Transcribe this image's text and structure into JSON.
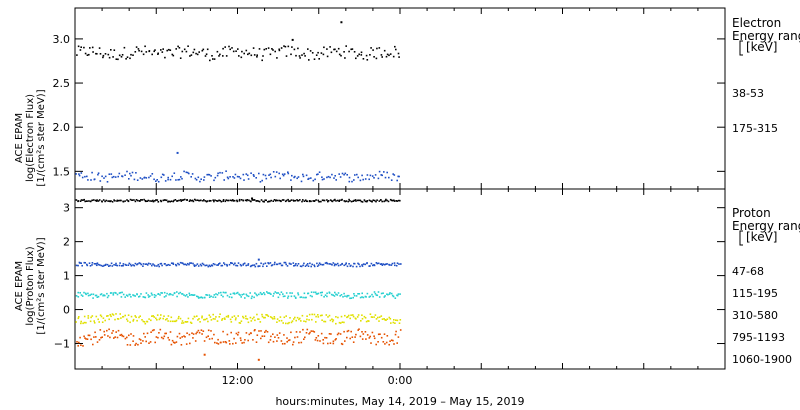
{
  "chart_data": [
    {
      "type": "scatter",
      "panel": "electron",
      "ylabel_lines": [
        "ACE EPAM",
        "log(Electron Flux)",
        "[1/(cm²s ster MeV)]"
      ],
      "ylim": [
        1.3,
        3.35
      ],
      "yticks": [
        "1.5",
        "2.0",
        "2.5",
        "3.0"
      ],
      "ytick_values": [
        1.5,
        2.0,
        2.5,
        3.0
      ],
      "legend_title_lines": [
        "Electron",
        "Energy ranges",
        "[keV]"
      ],
      "x_range_hours": [
        0,
        48
      ],
      "data_end_hours": 24,
      "series": [
        {
          "name": "38-53",
          "color": "#000000",
          "level": 2.85,
          "spread": 0.07,
          "outliers": [
            {
              "x": 19.6,
              "y": 3.2
            },
            {
              "x": 16.0,
              "y": 3.0
            }
          ]
        },
        {
          "name": "175-315",
          "color": "#1f4fc4",
          "level": 1.45,
          "spread": 0.05,
          "outliers": [
            {
              "x": 7.5,
              "y": 1.72
            }
          ]
        }
      ]
    },
    {
      "type": "scatter",
      "panel": "proton",
      "ylabel_lines": [
        "ACE EPAM",
        "log(Proton Flux)",
        "[1/(cm²s ster MeV)]"
      ],
      "ylim": [
        -1.75,
        3.55
      ],
      "yticks": [
        "−1",
        "0",
        "1",
        "2",
        "3"
      ],
      "ytick_values": [
        -1,
        0,
        1,
        2,
        3
      ],
      "legend_title_lines": [
        "Proton",
        "Energy ranges",
        "[keV]"
      ],
      "x_range_hours": [
        0,
        48
      ],
      "data_end_hours": 24,
      "series": [
        {
          "name": "47-68",
          "color": "#000000",
          "level": 3.23,
          "spread": 0.03,
          "outliers": [
            {
              "x": 13.0,
              "y": 3.3
            }
          ]
        },
        {
          "name": "115-195",
          "color": "#1f4fc4",
          "level": 1.35,
          "spread": 0.05,
          "outliers": [
            {
              "x": 13.5,
              "y": 1.5
            }
          ]
        },
        {
          "name": "310-580",
          "color": "#27d0d0",
          "level": 0.45,
          "spread": 0.08,
          "outliers": []
        },
        {
          "name": "795-1193",
          "color": "#e0e000",
          "level": -0.25,
          "spread": 0.12,
          "outliers": []
        },
        {
          "name": "1060-1900",
          "color": "#e65200",
          "level": -0.8,
          "spread": 0.2,
          "outliers": [
            {
              "x": 13.5,
              "y": -1.45
            },
            {
              "x": 9.5,
              "y": -1.3
            }
          ]
        }
      ]
    }
  ],
  "x_axis": {
    "ticks": [
      "12:00",
      "0:00"
    ],
    "tick_hours": [
      12,
      24
    ],
    "title": "hours:minutes, May 14, 2019 – May 15, 2019"
  }
}
